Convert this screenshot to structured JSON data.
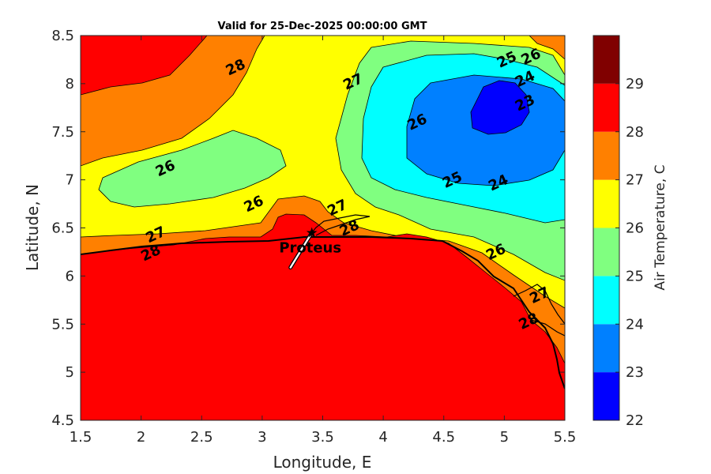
{
  "title": "Valid for 25-Dec-2025 00:00:00 GMT",
  "x_axis": {
    "label": "Longitude, E",
    "min": 1.5,
    "max": 5.5,
    "ticks": [
      "1.5",
      "2",
      "2.5",
      "3",
      "3.5",
      "4",
      "4.5",
      "5",
      "5.5"
    ]
  },
  "y_axis": {
    "label": "Latitude, N",
    "min": 4.5,
    "max": 8.5,
    "ticks": [
      "4.5",
      "5",
      "5.5",
      "6",
      "6.5",
      "7",
      "7.5",
      "8",
      "8.5"
    ]
  },
  "colorbar": {
    "label": "Air Temperature, C",
    "ticks": [
      "22",
      "23",
      "24",
      "25",
      "26",
      "27",
      "28",
      "29"
    ],
    "colors": [
      "#0000ff",
      "#0080ff",
      "#00ffff",
      "#80ff80",
      "#ffff00",
      "#ff8000",
      "#ff0000",
      "#800000"
    ]
  },
  "station": {
    "name": "Proteus",
    "lon": 3.41,
    "lat": 6.45
  },
  "contour_labels": [
    {
      "text": "28",
      "lon": 2.78,
      "lat": 8.17
    },
    {
      "text": "27",
      "lon": 3.75,
      "lat": 8.02
    },
    {
      "text": "26",
      "lon": 4.28,
      "lat": 7.6
    },
    {
      "text": "25",
      "lon": 5.02,
      "lat": 8.25
    },
    {
      "text": "26",
      "lon": 5.22,
      "lat": 8.28
    },
    {
      "text": "24",
      "lon": 5.17,
      "lat": 8.05
    },
    {
      "text": "23",
      "lon": 5.17,
      "lat": 7.8
    },
    {
      "text": "26",
      "lon": 2.2,
      "lat": 7.12
    },
    {
      "text": "25",
      "lon": 4.57,
      "lat": 7.0
    },
    {
      "text": "24",
      "lon": 4.95,
      "lat": 6.97
    },
    {
      "text": "26",
      "lon": 2.93,
      "lat": 6.75
    },
    {
      "text": "27",
      "lon": 2.12,
      "lat": 6.43
    },
    {
      "text": "28",
      "lon": 2.08,
      "lat": 6.24
    },
    {
      "text": "27",
      "lon": 3.62,
      "lat": 6.71
    },
    {
      "text": "28",
      "lon": 3.72,
      "lat": 6.5
    },
    {
      "text": "26",
      "lon": 4.93,
      "lat": 6.25
    },
    {
      "text": "27",
      "lon": 5.29,
      "lat": 5.8
    },
    {
      "text": "28",
      "lon": 5.2,
      "lat": 5.53
    }
  ]
}
